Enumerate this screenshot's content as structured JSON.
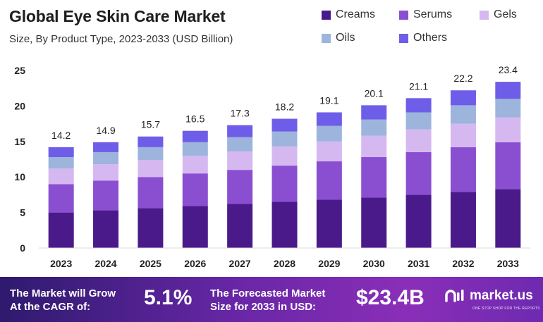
{
  "chart_data": {
    "type": "bar",
    "stacked": true,
    "title": "Global Eye Skin Care Market",
    "subtitle": "Size, By Product Type, 2023-2033 (USD Billion)",
    "categories": [
      "2023",
      "2024",
      "2025",
      "2026",
      "2027",
      "2028",
      "2029",
      "2030",
      "2031",
      "2032",
      "2033"
    ],
    "series": [
      {
        "name": "Creams",
        "color": "#4a1a8a",
        "values": [
          5.0,
          5.3,
          5.6,
          5.9,
          6.2,
          6.5,
          6.8,
          7.1,
          7.5,
          7.9,
          8.3
        ]
      },
      {
        "name": "Serums",
        "color": "#8a4fd0",
        "values": [
          4.0,
          4.2,
          4.4,
          4.6,
          4.8,
          5.1,
          5.4,
          5.7,
          6.0,
          6.3,
          6.6
        ]
      },
      {
        "name": "Gels",
        "color": "#d5b8f0",
        "values": [
          2.2,
          2.3,
          2.4,
          2.5,
          2.6,
          2.7,
          2.8,
          3.0,
          3.2,
          3.3,
          3.5
        ]
      },
      {
        "name": "Oils",
        "color": "#9db4dc",
        "values": [
          1.6,
          1.7,
          1.8,
          1.9,
          2.0,
          2.1,
          2.2,
          2.3,
          2.4,
          2.6,
          2.6
        ]
      },
      {
        "name": "Others",
        "color": "#6e5de8",
        "values": [
          1.4,
          1.4,
          1.5,
          1.6,
          1.7,
          1.8,
          1.9,
          2.0,
          2.0,
          2.1,
          2.4
        ]
      }
    ],
    "totals": [
      "14.2",
      "14.9",
      "15.7",
      "16.5",
      "17.3",
      "18.2",
      "19.1",
      "20.1",
      "21.1",
      "22.2",
      "23.4"
    ],
    "yticks": [
      0,
      5,
      10,
      15,
      20,
      25
    ],
    "ylim": [
      0,
      25
    ],
    "grid": false,
    "legend_position": "top-right"
  },
  "footer": {
    "cagr_label_line1": "The Market will Grow",
    "cagr_label_line2": "At the CAGR of:",
    "cagr_value": "5.1%",
    "forecast_label_line1": "The Forecasted Market",
    "forecast_label_line2": "Size for 2033 in USD:",
    "forecast_value": "$23.4B",
    "logo_text": "market.us",
    "logo_tagline": "ONE STOP SHOP FOR THE REPORTS"
  }
}
